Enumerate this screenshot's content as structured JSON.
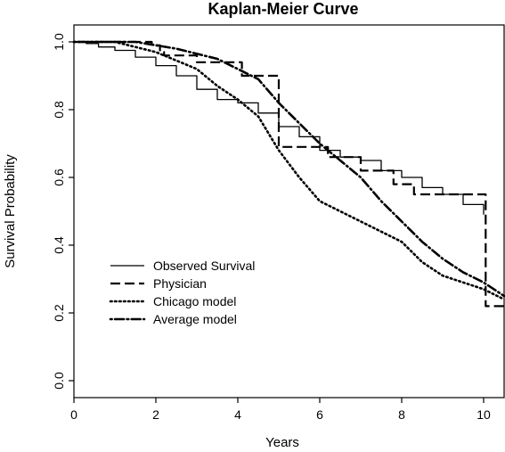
{
  "chart_data": {
    "type": "line",
    "title": "Kaplan-Meier Curve",
    "xlabel": "Years",
    "ylabel": "Survival Probability",
    "xlim": [
      0,
      10.5
    ],
    "ylim": [
      -0.05,
      1.05
    ],
    "x_ticks": [
      0,
      2,
      4,
      6,
      8,
      10
    ],
    "y_ticks": [
      0.0,
      0.2,
      0.4,
      0.6,
      0.8,
      1.0
    ],
    "grid": false,
    "legend_position": "bottom-left",
    "series": [
      {
        "name": "Observed Survival",
        "style": "solid",
        "step": true,
        "points": [
          [
            0,
            1.0
          ],
          [
            0.3,
            0.995
          ],
          [
            0.6,
            0.985
          ],
          [
            1.0,
            0.975
          ],
          [
            1.5,
            0.955
          ],
          [
            2.0,
            0.93
          ],
          [
            2.5,
            0.9
          ],
          [
            3.0,
            0.86
          ],
          [
            3.5,
            0.83
          ],
          [
            4.0,
            0.82
          ],
          [
            4.5,
            0.79
          ],
          [
            5.0,
            0.75
          ],
          [
            5.5,
            0.72
          ],
          [
            6.0,
            0.68
          ],
          [
            6.5,
            0.66
          ],
          [
            7.0,
            0.65
          ],
          [
            7.5,
            0.62
          ],
          [
            8.0,
            0.6
          ],
          [
            8.5,
            0.57
          ],
          [
            9.0,
            0.55
          ],
          [
            9.5,
            0.52
          ],
          [
            10.0,
            0.49
          ]
        ]
      },
      {
        "name": "Physician",
        "style": "dashed",
        "step": true,
        "points": [
          [
            0,
            1.0
          ],
          [
            1.0,
            1.0
          ],
          [
            1.9,
            0.99
          ],
          [
            2.1,
            0.97
          ],
          [
            2.2,
            0.96
          ],
          [
            3.0,
            0.94
          ],
          [
            4.1,
            0.9
          ],
          [
            5.0,
            0.9
          ],
          [
            5.0,
            0.69
          ],
          [
            6.2,
            0.66
          ],
          [
            7.0,
            0.62
          ],
          [
            7.8,
            0.58
          ],
          [
            8.3,
            0.55
          ],
          [
            9.9,
            0.55
          ],
          [
            10.05,
            0.55
          ],
          [
            10.05,
            0.22
          ],
          [
            10.5,
            0.22
          ]
        ]
      },
      {
        "name": "Chicago model",
        "style": "dotted",
        "step": false,
        "points": [
          [
            0,
            1.0
          ],
          [
            1.0,
            1.0
          ],
          [
            2.0,
            0.97
          ],
          [
            3.0,
            0.92
          ],
          [
            3.5,
            0.87
          ],
          [
            4.0,
            0.83
          ],
          [
            4.5,
            0.78
          ],
          [
            5.0,
            0.68
          ],
          [
            5.5,
            0.6
          ],
          [
            6.0,
            0.53
          ],
          [
            7.0,
            0.47
          ],
          [
            7.5,
            0.44
          ],
          [
            8.0,
            0.41
          ],
          [
            8.5,
            0.35
          ],
          [
            9.0,
            0.31
          ],
          [
            9.5,
            0.29
          ],
          [
            10.0,
            0.27
          ],
          [
            10.5,
            0.24
          ]
        ]
      },
      {
        "name": "Average model",
        "style": "dashdot",
        "step": false,
        "points": [
          [
            0,
            1.0
          ],
          [
            1.5,
            1.0
          ],
          [
            2.5,
            0.98
          ],
          [
            3.5,
            0.95
          ],
          [
            4.5,
            0.89
          ],
          [
            5.0,
            0.82
          ],
          [
            5.5,
            0.76
          ],
          [
            6.0,
            0.7
          ],
          [
            7.0,
            0.6
          ],
          [
            7.5,
            0.53
          ],
          [
            8.0,
            0.47
          ],
          [
            8.5,
            0.41
          ],
          [
            9.0,
            0.36
          ],
          [
            9.5,
            0.32
          ],
          [
            10.0,
            0.29
          ],
          [
            10.5,
            0.25
          ]
        ]
      }
    ]
  }
}
